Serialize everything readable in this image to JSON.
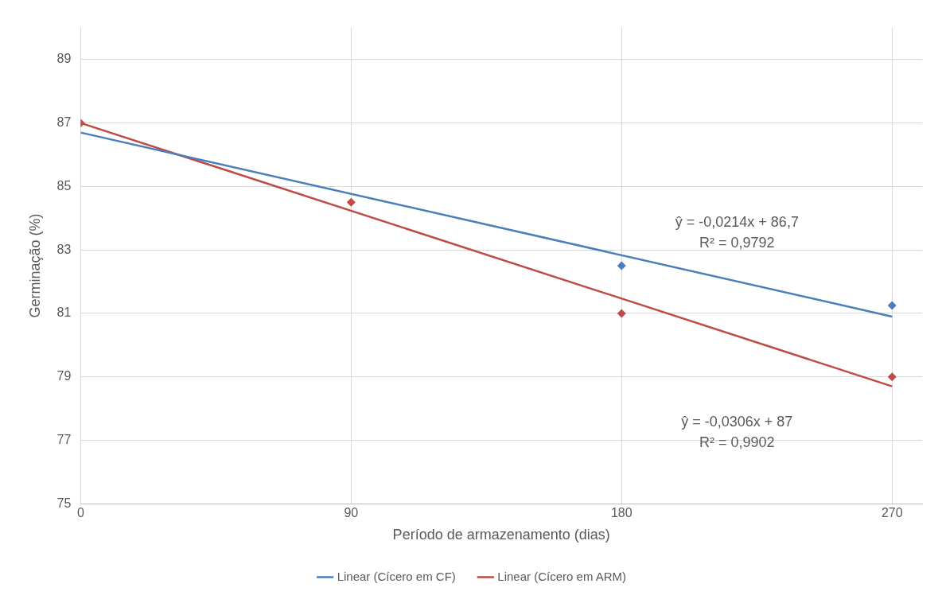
{
  "chart_data": {
    "type": "scatter",
    "xlabel": "Período de armazenamento (dias)",
    "ylabel": "Germinação (%)",
    "xlim": [
      0,
      280
    ],
    "xticks": [
      0,
      90,
      180,
      270
    ],
    "ylim": [
      75,
      90
    ],
    "yticks": [
      75,
      77,
      79,
      81,
      83,
      85,
      87,
      89
    ],
    "grid": true,
    "legend": "bottom",
    "line_style": "solid",
    "series": [
      {
        "marker": "diamond",
        "color": "#4a7ebb",
        "x": [
          180,
          270
        ],
        "values": [
          82.5,
          81.25
        ]
      },
      {
        "marker": "diamond",
        "color": "#be4b48",
        "x": [
          0,
          90,
          180,
          270
        ],
        "values": [
          87,
          84.5,
          81,
          79
        ]
      },
      {
        "type": "line",
        "marker": "none",
        "name": "Linear (Cícero em CF)",
        "color": "#4a7ebb",
        "x": [
          0,
          270
        ],
        "values": [
          86.7,
          80.9
        ]
      },
      {
        "type": "line",
        "marker": "none",
        "name": "Linear (Cícero em ARM)",
        "color": "#be4b48",
        "x": [
          0,
          270
        ],
        "values": [
          87,
          78.7
        ]
      }
    ],
    "annotations": [
      "ŷ = -0,0214x + 86,7\nR² = 0,9792",
      "ŷ = -0,0306x + 87\nR² = 0,9902"
    ]
  }
}
